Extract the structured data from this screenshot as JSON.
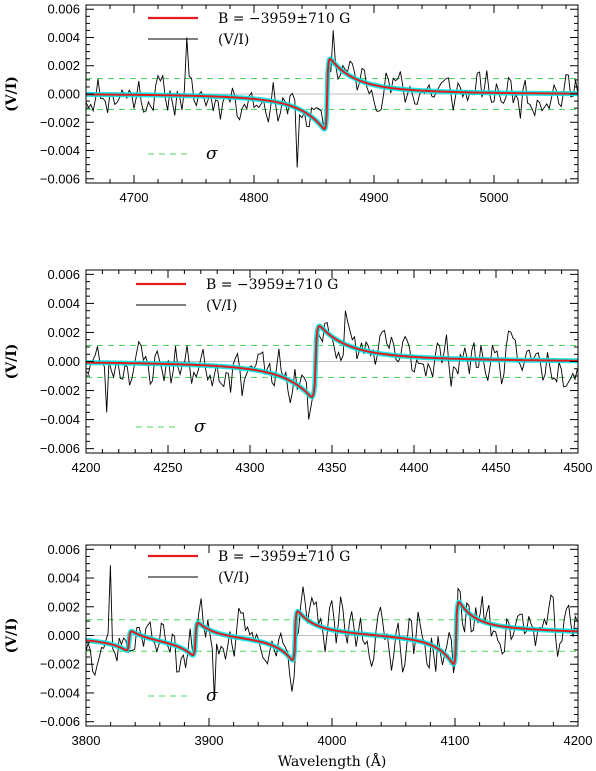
{
  "chart_data": [
    {
      "type": "line",
      "ylabel": "(V/I)",
      "xlabel": "",
      "xlim": [
        4660,
        5070
      ],
      "ylim": [
        -0.0063,
        0.0063
      ],
      "xticks": [
        4700,
        4800,
        4900,
        5000
      ],
      "yticks": [
        -0.006,
        -0.004,
        -0.002,
        0.0,
        0.002,
        0.004,
        0.006
      ],
      "ytick_labels": [
        "−0.006",
        "−0.004",
        "−0.002",
        "0.000",
        "0.002",
        "0.004",
        "0.006"
      ],
      "sigma": 0.0011,
      "legend": {
        "model_label": "B = −3959±710 G",
        "observed_label": "(V/I)",
        "sigma_label": "σ"
      },
      "series": [
        {
          "name": "B = −3959±710 G",
          "color": "#e41a1c",
          "lines": [
            {
              "center": 4861,
              "amp": 0.0021,
              "width": 4.5,
              "wing": 1.4
            }
          ]
        },
        {
          "name": "(V/I)",
          "color": "#000000",
          "noise": 0.0012,
          "seed": 11,
          "step": 2
        }
      ],
      "spikes": [
        {
          "x": 4836,
          "y": -0.0052
        },
        {
          "x": 4866,
          "y": 0.0045
        },
        {
          "x": 4744,
          "y": 0.004
        }
      ],
      "colors": {
        "model": "#e41a1c",
        "band": "#00e5e5",
        "sigma": "#4cd964",
        "zero": "#bfbfbf"
      }
    },
    {
      "type": "line",
      "ylabel": "(V/I)",
      "xlabel": "",
      "xlim": [
        4200,
        4500
      ],
      "ylim": [
        -0.0063,
        0.0063
      ],
      "xticks": [
        4200,
        4250,
        4300,
        4350,
        4400,
        4450,
        4500
      ],
      "yticks": [
        -0.006,
        -0.004,
        -0.002,
        0.0,
        0.002,
        0.004,
        0.006
      ],
      "ytick_labels": [
        "−0.006",
        "−0.004",
        "−0.002",
        "0.000",
        "0.002",
        "0.004",
        "0.006"
      ],
      "sigma": 0.0011,
      "legend": {
        "model_label": "B = −3959±710 G",
        "observed_label": "(V/I)",
        "sigma_label": "σ"
      },
      "series": [
        {
          "name": "B = −3959±710 G",
          "color": "#e41a1c",
          "lines": [
            {
              "center": 4340,
              "amp": 0.0021,
              "width": 3.8,
              "wing": 1.6
            }
          ]
        },
        {
          "name": "(V/I)",
          "color": "#000000",
          "noise": 0.0013,
          "seed": 23,
          "step": 1.4
        }
      ],
      "spikes": [
        {
          "x": 4336,
          "y": -0.004
        },
        {
          "x": 4358,
          "y": 0.0035
        },
        {
          "x": 4213,
          "y": -0.0035
        }
      ],
      "colors": {
        "model": "#e41a1c",
        "band": "#00e5e5",
        "sigma": "#4cd964",
        "zero": "#bfbfbf"
      }
    },
    {
      "type": "line",
      "ylabel": "(V/I)",
      "xlabel": "Wavelength (Å)",
      "xlim": [
        3800,
        4200
      ],
      "ylim": [
        -0.0063,
        0.0063
      ],
      "xticks": [
        3800,
        3900,
        4000,
        4100,
        4200
      ],
      "yticks": [
        -0.006,
        -0.004,
        -0.002,
        0.0,
        0.002,
        0.004,
        0.006
      ],
      "ytick_labels": [
        "−0.006",
        "−0.004",
        "−0.002",
        "0.000",
        "0.002",
        "0.004",
        "0.006"
      ],
      "sigma": 0.0011,
      "legend": {
        "model_label": "B = −3959±710 G",
        "observed_label": "(V/I)",
        "sigma_label": "σ"
      },
      "series": [
        {
          "name": "B = −3959±710 G",
          "color": "#e41a1c",
          "lines": [
            {
              "center": 3835,
              "amp": 0.0006,
              "width": 3.0,
              "wing": 1.0
            },
            {
              "center": 3889,
              "amp": 0.001,
              "width": 3.0,
              "wing": 3.0
            },
            {
              "center": 3970,
              "amp": 0.0015,
              "width": 3.0,
              "wing": 3.2
            },
            {
              "center": 4101,
              "amp": 0.0019,
              "width": 3.0,
              "wing": 3.0
            }
          ]
        },
        {
          "name": "(V/I)",
          "color": "#000000",
          "noise": 0.0016,
          "seed": 37,
          "step": 1.8
        }
      ],
      "spikes": [
        {
          "x": 3819,
          "y": 0.0049
        },
        {
          "x": 3905,
          "y": -0.0045
        }
      ],
      "colors": {
        "model": "#e41a1c",
        "band": "#00e5e5",
        "sigma": "#4cd964",
        "zero": "#bfbfbf"
      }
    }
  ]
}
